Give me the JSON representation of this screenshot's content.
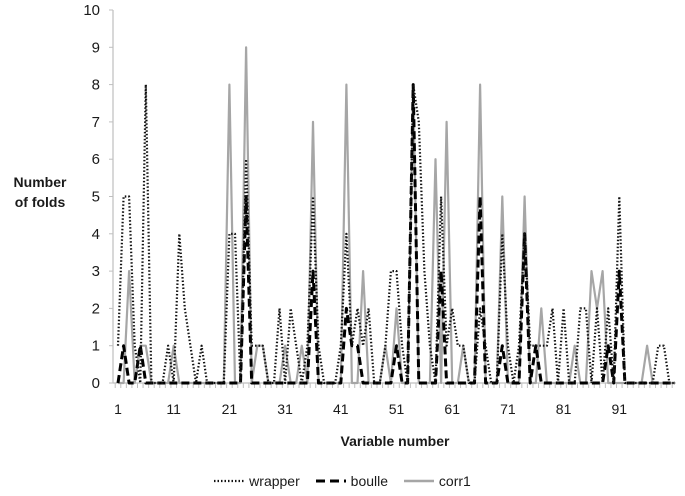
{
  "chart_data": {
    "type": "line",
    "title": "",
    "xlabel": "Variable number",
    "ylabel": "Number of folds",
    "ylim": [
      0,
      10
    ],
    "xlim": [
      1,
      101
    ],
    "yticks": [
      0,
      1,
      2,
      3,
      4,
      5,
      6,
      7,
      8,
      9,
      10
    ],
    "xtick_labels": [
      "1",
      "11",
      "21",
      "31",
      "41",
      "51",
      "61",
      "71",
      "81",
      "91"
    ],
    "grid": false,
    "legend_position": "bottom",
    "x": [
      1,
      2,
      3,
      4,
      5,
      6,
      7,
      8,
      9,
      10,
      11,
      12,
      13,
      14,
      15,
      16,
      17,
      18,
      19,
      20,
      21,
      22,
      23,
      24,
      25,
      26,
      27,
      28,
      29,
      30,
      31,
      32,
      33,
      34,
      35,
      36,
      37,
      38,
      39,
      40,
      41,
      42,
      43,
      44,
      45,
      46,
      47,
      48,
      49,
      50,
      51,
      52,
      53,
      54,
      55,
      56,
      57,
      58,
      59,
      60,
      61,
      62,
      63,
      64,
      65,
      66,
      67,
      68,
      69,
      70,
      71,
      72,
      73,
      74,
      75,
      76,
      77,
      78,
      79,
      80,
      81,
      82,
      83,
      84,
      85,
      86,
      87,
      88,
      89,
      90,
      91,
      92,
      93,
      94,
      95,
      96,
      97,
      98,
      99,
      100,
      101
    ],
    "series": [
      {
        "name": "wrapper",
        "style": "dotted",
        "color": "#111111",
        "values": [
          1,
          5,
          5,
          1,
          0,
          8,
          0,
          0,
          0,
          1,
          0,
          4,
          2,
          1,
          0,
          1,
          0,
          0,
          0,
          0,
          4,
          4,
          0,
          6,
          1,
          1,
          1,
          0,
          0,
          2,
          0,
          2,
          1,
          0,
          1,
          5,
          1,
          0,
          0,
          0,
          1,
          4,
          1,
          2,
          1,
          2,
          0,
          0,
          1,
          3,
          3,
          1,
          0,
          8,
          7,
          3,
          1,
          0,
          5,
          1,
          2,
          1,
          1,
          0,
          0,
          2,
          1,
          0,
          0,
          4,
          1,
          0,
          1,
          4,
          1,
          1,
          1,
          1,
          2,
          0,
          2,
          0,
          0,
          2,
          2,
          0,
          2,
          0,
          2,
          0,
          5,
          0,
          0,
          0,
          0,
          0,
          0,
          1,
          1,
          0,
          0
        ]
      },
      {
        "name": "boulle",
        "style": "dashed",
        "color": "#000000",
        "values": [
          0,
          1,
          0,
          0,
          1,
          0,
          0,
          0,
          0,
          0,
          0,
          0,
          0,
          0,
          0,
          0,
          0,
          0,
          0,
          0,
          0,
          0,
          0,
          5,
          0,
          0,
          0,
          0,
          0,
          0,
          0,
          0,
          0,
          0,
          0,
          3,
          0,
          0,
          0,
          0,
          0,
          2,
          1,
          1,
          0,
          0,
          0,
          0,
          0,
          0,
          1,
          0,
          0,
          8,
          0,
          0,
          0,
          0,
          3,
          0,
          0,
          0,
          0,
          0,
          0,
          5,
          0,
          0,
          0,
          1,
          0,
          0,
          0,
          4,
          0,
          1,
          0,
          0,
          0,
          0,
          0,
          0,
          0,
          0,
          0,
          0,
          0,
          0,
          1,
          0,
          3,
          0,
          0,
          0,
          0,
          0,
          0,
          0,
          0,
          0,
          0
        ]
      },
      {
        "name": "corr1",
        "style": "solid",
        "color": "#a6a6a6",
        "values": [
          0,
          0,
          3,
          0,
          1,
          1,
          0,
          0,
          0,
          0,
          1,
          0,
          0,
          0,
          0,
          0,
          0,
          0,
          0,
          0,
          8,
          0,
          0,
          9,
          0,
          1,
          1,
          0,
          0,
          0,
          1,
          0,
          0,
          1,
          0,
          7,
          0,
          0,
          0,
          0,
          0,
          8,
          0,
          0,
          3,
          0,
          0,
          0,
          1,
          0,
          2,
          0,
          0,
          8,
          0,
          0,
          0,
          6,
          0,
          7,
          0,
          0,
          1,
          0,
          0,
          8,
          0,
          0,
          0,
          5,
          0,
          0,
          0,
          5,
          0,
          0,
          2,
          0,
          0,
          0,
          0,
          0,
          1,
          0,
          0,
          3,
          2,
          3,
          0,
          0,
          0,
          0,
          0,
          0,
          0,
          1,
          0,
          0,
          0,
          0,
          0
        ]
      }
    ]
  },
  "legend": {
    "items": [
      {
        "label": "wrapper"
      },
      {
        "label": "boulle"
      },
      {
        "label": "corr1"
      }
    ]
  },
  "axis": {
    "ylabel_line1": "Number",
    "ylabel_line2": "of folds",
    "xlabel": "Variable number"
  }
}
